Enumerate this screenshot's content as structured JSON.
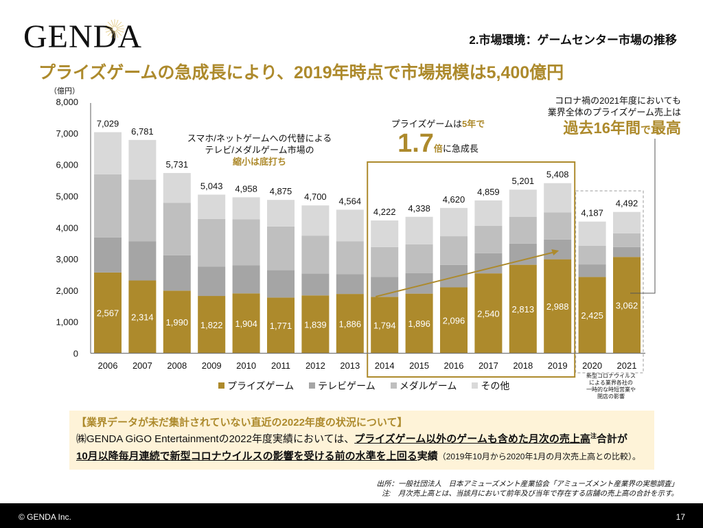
{
  "logo": {
    "text": "GENDA"
  },
  "section_title": "2.市場環境：ゲームセンター市場の推移",
  "headline": "プライズゲームの急成長により、2019年時点で市場規模は5,400億円",
  "colors": {
    "accent": "#AD8A2C",
    "prize": "#AD8A2C",
    "tv": "#A5A5A5",
    "medal": "#BFBFBF",
    "other": "#D9D9D9",
    "infobox_bg": "#FEF3D8"
  },
  "annotations": {
    "left": {
      "line1": "スマホ/ネットゲームへの代替による",
      "line2": "テレビ/メダルゲーム市場の",
      "line3": "縮小は底打ち"
    },
    "middle": {
      "line1_a": "プライズゲームは",
      "line1_b": "5年で",
      "big": "1.7",
      "big_suffix": "倍",
      "line2_rest": "に急成長"
    },
    "right": {
      "line1": "コロナ禍の2021年度においても",
      "line2": "業界全体のプライズゲーム売上は",
      "big_a": "過去16年間",
      "big_small": "で",
      "big_b": "最高"
    },
    "covid": {
      "line1": "新型コロナウイルス",
      "line2": "による業界各社の",
      "line3": "一時的な時短営業や",
      "line4": "閉店の影響"
    }
  },
  "chart_data": {
    "type": "bar",
    "stacked": true,
    "title": "",
    "ylabel": "（億円）",
    "xlabel": "",
    "ylim": [
      0,
      8000
    ],
    "yticks": [
      0,
      1000,
      2000,
      3000,
      4000,
      5000,
      6000,
      7000,
      8000
    ],
    "ytick_labels": [
      "0",
      "1,000",
      "2,000",
      "3,000",
      "4,000",
      "5,000",
      "6,000",
      "7,000",
      "8,000"
    ],
    "grid": false,
    "legend_position": "bottom",
    "categories": [
      "2006",
      "2007",
      "2008",
      "2009",
      "2010",
      "2011",
      "2012",
      "2013",
      "2014",
      "2015",
      "2016",
      "2017",
      "2018",
      "2019",
      "2020",
      "2021"
    ],
    "series": [
      {
        "name": "プライズゲーム",
        "color": "#AD8A2C",
        "values": [
          2567,
          2314,
          1990,
          1822,
          1904,
          1771,
          1839,
          1886,
          1794,
          1896,
          2096,
          2540,
          2813,
          2988,
          2425,
          3062
        ],
        "labels": [
          "2,567",
          "2,314",
          "1,990",
          "1,822",
          "1,904",
          "1,771",
          "1,839",
          "1,886",
          "1,794",
          "1,896",
          "2,096",
          "2,540",
          "2,813",
          "2,988",
          "2,425",
          "3,062"
        ]
      },
      {
        "name": "テレビゲーム",
        "color": "#A5A5A5",
        "values": [
          1113,
          1246,
          1125,
          928,
          891,
          874,
          696,
          624,
          636,
          654,
          714,
          640,
          672,
          627,
          400,
          313
        ]
      },
      {
        "name": "メダルゲーム",
        "color": "#BFBFBF",
        "values": [
          2010,
          1960,
          1665,
          1520,
          1465,
          1385,
          1205,
          1050,
          945,
          915,
          910,
          870,
          855,
          865,
          595,
          435
        ]
      },
      {
        "name": "その他",
        "color": "#D9D9D9",
        "values": [
          1339,
          1261,
          951,
          773,
          698,
          845,
          960,
          1004,
          847,
          873,
          900,
          809,
          861,
          928,
          767,
          682
        ]
      }
    ],
    "totals": [
      7029,
      6781,
      5731,
      5043,
      4958,
      4875,
      4700,
      4564,
      4222,
      4338,
      4620,
      4859,
      5201,
      5408,
      4187,
      4492
    ],
    "total_labels": [
      "7,029",
      "6,781",
      "5,731",
      "5,043",
      "4,958",
      "4,875",
      "4,700",
      "4,564",
      "4,222",
      "4,338",
      "4,620",
      "4,859",
      "5,201",
      "5,408",
      "4,187",
      "4,492"
    ],
    "highlight_range": [
      "2014",
      "2019"
    ],
    "dashed_range": [
      "2020",
      "2021"
    ],
    "trend_arrow": {
      "from": "2014",
      "to": "2019",
      "series": "プライズゲーム"
    }
  },
  "legend": [
    {
      "label": "プライズゲーム",
      "color": "#AD8A2C"
    },
    {
      "label": "テレビゲーム",
      "color": "#A5A5A5"
    },
    {
      "label": "メダルゲーム",
      "color": "#BFBFBF"
    },
    {
      "label": "その他",
      "color": "#D9D9D9"
    }
  ],
  "infobox": {
    "title": "【業界データが未だ集計されていない直近の2022年度の状況について】",
    "line2_a": "㈱GENDA GiGO Entertainmentの2022年度実績においては、",
    "line2_u": "プライズゲーム以外のゲームも含めた月次の売上高",
    "line2_sup": "注",
    "line2_b": "合計が",
    "line3_u": "10月以降毎月連続で新型コロナウイルスの影響を受ける前の水準を上回る",
    "line3_b": "実績",
    "line3_paren": "（2019年10月から2020年1月の月次売上高との比較）。"
  },
  "source": {
    "line1": "出所：一般社団法人　日本アミューズメント産業協会「アミューズメント産業界の実態調査」",
    "line2": "注:　月次売上高とは、当該月において前年及び当年で存在する店舗の売上高の合計を示す。"
  },
  "footer": {
    "copyright": "© GENDA Inc.",
    "page": "17"
  }
}
